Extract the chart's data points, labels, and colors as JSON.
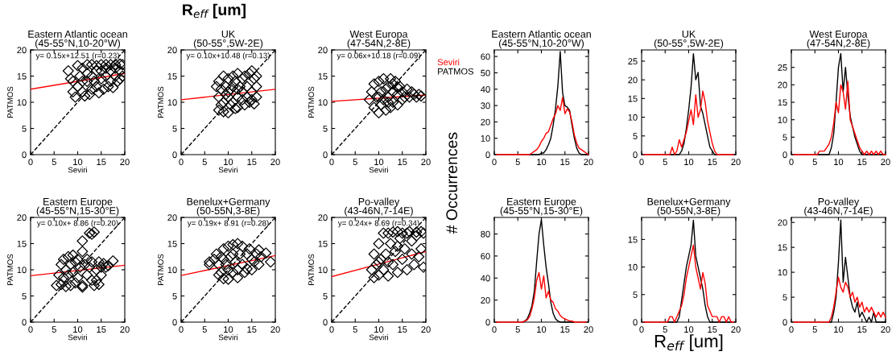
{
  "chart_data": [
    {
      "type": "scatter",
      "title": "Eastern Atlantic ocean\n(45-55°N,10-20°W)",
      "xlabel": "Seviri",
      "ylabel": "PATMOS",
      "xlim": [
        0,
        20
      ],
      "ylim": [
        0,
        20
      ],
      "xticks": [
        0,
        5,
        10,
        15,
        20
      ],
      "yticks": [
        0,
        5,
        10,
        15,
        20
      ],
      "annotations": [
        "y= 0.15x+12.51 (r=0.23)"
      ],
      "series": [
        {
          "type": "scatter",
          "color": "#000000",
          "marker": "diamond",
          "x": [
            8,
            8.5,
            9,
            9.5,
            10,
            10,
            11,
            11,
            11.5,
            12,
            12,
            12.5,
            13,
            13,
            13,
            14,
            14,
            14.5,
            15,
            15,
            15.5,
            16,
            16,
            16.5,
            17,
            17,
            17.5,
            18,
            18,
            18.5,
            19,
            19,
            19.5,
            19.5,
            10.5,
            12,
            13.5,
            15,
            16,
            17,
            18,
            9,
            11,
            14,
            19
          ],
          "values": [
            16,
            14.5,
            12,
            11,
            17,
            13,
            16.5,
            12,
            11.2,
            17.2,
            14,
            11.5,
            17.2,
            15,
            12.5,
            16,
            13,
            11.8,
            17.2,
            14.5,
            12.5,
            17.2,
            15,
            13,
            17.2,
            14,
            12.8,
            16.5,
            15,
            14,
            17.3,
            16,
            15,
            17.2,
            15,
            15.5,
            14,
            16,
            16.5,
            16,
            17.2,
            14,
            14,
            17,
            14.5
          ]
        },
        {
          "type": "line",
          "color": "#ff0000",
          "line_style": "solid",
          "x": [
            0,
            20
          ],
          "values": [
            12.51,
            15.51
          ]
        },
        {
          "type": "line",
          "color": "#000000",
          "line_style": "dashed",
          "x": [
            0,
            20
          ],
          "values": [
            0,
            20
          ]
        }
      ]
    },
    {
      "type": "scatter",
      "title": "UK\n(50-55°,5W-2E)",
      "xlabel": "Seviri",
      "ylabel": "PATMOS",
      "xlim": [
        0,
        20
      ],
      "ylim": [
        0,
        20
      ],
      "xticks": [
        0,
        5,
        10,
        15,
        20
      ],
      "yticks": [
        0,
        5,
        10,
        15,
        20
      ],
      "annotations": [
        "y= 0.10x+10.48 (r=0.13)",
        "R$_{eff}$ [um]"
      ],
      "series": [
        {
          "type": "scatter",
          "color": "#000000",
          "marker": "diamond",
          "x": [
            7.5,
            8,
            8,
            8,
            8.5,
            8.5,
            9,
            9,
            9,
            9.5,
            10,
            10,
            10,
            10.5,
            10.5,
            11,
            11,
            11,
            11.5,
            11.5,
            12,
            12,
            12,
            12.5,
            13,
            13,
            13,
            13.5,
            13.5,
            14,
            14,
            14.5,
            14.5,
            15,
            15,
            15,
            15.5,
            16,
            16,
            16,
            15.5,
            9.5,
            12,
            10
          ],
          "values": [
            13,
            14,
            11,
            8.5,
            12.5,
            9.5,
            15,
            10,
            8.2,
            13,
            14.5,
            11,
            8,
            12.5,
            9.5,
            15,
            10,
            13,
            8.8,
            14,
            15.5,
            11,
            9,
            13,
            14.5,
            10.5,
            12,
            15,
            9.5,
            13,
            11,
            15.5,
            10,
            16,
            12,
            10.5,
            14.5,
            15,
            13,
            11,
            9.7,
            11.5,
            12.5,
            12
          ]
        },
        {
          "type": "line",
          "color": "#ff0000",
          "line_style": "solid",
          "x": [
            0,
            20
          ],
          "values": [
            10.48,
            12.48
          ]
        },
        {
          "type": "line",
          "color": "#000000",
          "line_style": "dashed",
          "x": [
            0,
            20
          ],
          "values": [
            0,
            20
          ]
        }
      ]
    },
    {
      "type": "scatter",
      "title": "West Europa\n(47-54N,2-8E)",
      "xlabel": "Seviri",
      "ylabel": "PATMOS",
      "xlim": [
        0,
        20
      ],
      "ylim": [
        0,
        20
      ],
      "xticks": [
        0,
        5,
        10,
        15,
        20
      ],
      "yticks": [
        0,
        5,
        10,
        15,
        20
      ],
      "annotations": [
        "y= 0.06x+10.18 (r=0.09)"
      ],
      "series": [
        {
          "type": "scatter",
          "color": "#000000",
          "marker": "diamond",
          "x": [
            8,
            8.5,
            9,
            9,
            9.5,
            10,
            10,
            10.5,
            10.5,
            11,
            11,
            11.5,
            12,
            12,
            12.5,
            12.5,
            13,
            13,
            13.5,
            14,
            14,
            14.5,
            15,
            15,
            15.5,
            16,
            16.5,
            17,
            17.5,
            18,
            18.5,
            19,
            11.5,
            13,
            10,
            12,
            14
          ],
          "values": [
            10.5,
            12,
            9,
            13.5,
            11,
            8,
            14,
            12,
            9.5,
            14.5,
            10.5,
            8.5,
            13,
            11,
            14.5,
            9,
            12,
            10,
            14,
            11.5,
            9.5,
            13,
            12,
            10.5,
            11,
            12.5,
            11,
            12,
            11.5,
            11,
            11.5,
            11.2,
            12.5,
            13.5,
            11,
            10,
            12.8
          ]
        },
        {
          "type": "line",
          "color": "#ff0000",
          "line_style": "solid",
          "x": [
            0,
            20
          ],
          "values": [
            10.18,
            11.38
          ]
        },
        {
          "type": "line",
          "color": "#000000",
          "line_style": "dashed",
          "x": [
            0,
            20
          ],
          "values": [
            0,
            20
          ]
        }
      ]
    },
    {
      "type": "line",
      "title": "Eastern Atlantic ocean\n(45-55°N,10-20°W)",
      "ylabel": "# Occurrences",
      "xlim": [
        0,
        20
      ],
      "ylim": [
        0,
        64
      ],
      "xticks": [
        0,
        5,
        10,
        15,
        20
      ],
      "yticks": [
        0,
        10,
        20,
        30,
        40,
        50,
        60
      ],
      "legend": "top left",
      "x": [
        0.5,
        1,
        1.5,
        2,
        2.5,
        3,
        3.5,
        4,
        4.5,
        5,
        5.5,
        6,
        6.5,
        7,
        7.5,
        8,
        8.5,
        9,
        9.5,
        10,
        10.5,
        11,
        11.5,
        12,
        12.5,
        13,
        13.5,
        14,
        14.5,
        15,
        15.5,
        16,
        16.5,
        17,
        17.5,
        18,
        18.5,
        19,
        19.5,
        20
      ],
      "series": [
        {
          "name": "Seviri",
          "color": "#ff0000",
          "values": [
            0,
            0,
            0,
            0,
            0,
            0,
            0,
            0,
            0,
            0,
            0,
            0,
            0,
            0,
            0,
            1,
            2,
            3,
            5,
            8,
            10,
            13,
            14,
            18,
            22,
            25,
            30,
            27,
            35,
            25,
            28,
            26,
            20,
            12,
            7,
            4,
            3,
            2,
            1,
            0
          ]
        },
        {
          "name": "PATMOS",
          "color": "#000000",
          "values": [
            null,
            null,
            null,
            null,
            null,
            null,
            null,
            null,
            null,
            null,
            null,
            null,
            null,
            null,
            0,
            0,
            0,
            0,
            0,
            1,
            1,
            3,
            6,
            10,
            18,
            28,
            42,
            63,
            38,
            30,
            29,
            27,
            18,
            10,
            4,
            1,
            0,
            0,
            0,
            0
          ]
        }
      ]
    },
    {
      "type": "line",
      "title": "UK\n(50-55°,5W-2E)",
      "xlim": [
        0,
        20
      ],
      "ylim": [
        0,
        28
      ],
      "xticks": [
        0,
        5,
        10,
        15,
        20
      ],
      "yticks": [
        0,
        5,
        10,
        15,
        20,
        25
      ],
      "x": [
        0.5,
        1,
        1.5,
        2,
        2.5,
        3,
        3.5,
        4,
        4.5,
        5,
        5.5,
        6,
        6.5,
        7,
        7.5,
        8,
        8.5,
        9,
        9.5,
        10,
        10.5,
        11,
        11.5,
        12,
        12.5,
        13,
        13.5,
        14,
        14.5,
        15,
        15.5,
        16,
        16.5,
        17,
        17.5,
        18,
        18.5,
        19,
        19.5
      ],
      "series": [
        {
          "color": "#ff0000",
          "values": [
            0,
            0,
            0,
            0,
            0,
            0,
            0,
            0,
            0,
            0,
            0,
            0,
            2,
            0,
            1,
            4,
            2,
            4,
            6,
            9,
            12,
            8,
            16,
            10,
            12,
            17,
            14,
            9,
            6,
            3,
            1,
            0,
            0,
            0,
            0,
            0,
            0,
            0,
            0
          ]
        },
        {
          "color": "#000000",
          "values": [
            null,
            null,
            null,
            null,
            null,
            null,
            null,
            null,
            null,
            null,
            null,
            0,
            0,
            0,
            0,
            0,
            1,
            3,
            7,
            12,
            18,
            27,
            20,
            22,
            13,
            11,
            8,
            5,
            2,
            1,
            0,
            0,
            null,
            null,
            null,
            null,
            null,
            null,
            null
          ]
        }
      ]
    },
    {
      "type": "line",
      "title": "West Europa\n(47-54N,2-8E)",
      "xlim": [
        0,
        20
      ],
      "ylim": [
        0,
        30
      ],
      "xticks": [
        0,
        5,
        10,
        15,
        20
      ],
      "yticks": [
        0,
        5,
        10,
        15,
        20,
        25
      ],
      "x": [
        0.5,
        1,
        1.5,
        2,
        2.5,
        3,
        3.5,
        4,
        4.5,
        5,
        5.5,
        6,
        6.5,
        7,
        7.5,
        8,
        8.5,
        9,
        9.5,
        10,
        10.5,
        11,
        11.5,
        12,
        12.5,
        13,
        13.5,
        14,
        14.5,
        15,
        15.5,
        16,
        16.5,
        17,
        17.5,
        18,
        18.5,
        19,
        19.5,
        20
      ],
      "series": [
        {
          "color": "#ff0000",
          "values": [
            0,
            0,
            0,
            0,
            0,
            0,
            0,
            0,
            0,
            0,
            0,
            1,
            1,
            1,
            2,
            3,
            5,
            9,
            15,
            12,
            20,
            18,
            13,
            21,
            10,
            8,
            6,
            4,
            2,
            1,
            0,
            1,
            0,
            1,
            0,
            1,
            0,
            1,
            0,
            0
          ]
        },
        {
          "color": "#000000",
          "values": [
            null,
            null,
            null,
            null,
            null,
            null,
            null,
            null,
            null,
            null,
            0,
            0,
            0,
            0,
            0,
            0,
            2,
            6,
            15,
            25,
            29,
            18,
            25,
            17,
            11,
            8,
            5,
            3,
            1,
            0,
            0,
            0,
            0,
            0,
            0,
            0,
            0,
            0,
            0,
            null
          ]
        }
      ]
    },
    {
      "type": "scatter",
      "title": "Eastern Europe\n(45-55°N,15-30°E)",
      "xlabel": "Seviri",
      "ylabel": "PATMOS",
      "xlim": [
        0,
        20
      ],
      "ylim": [
        0,
        20
      ],
      "xticks": [
        0,
        5,
        10,
        15,
        20
      ],
      "yticks": [
        0,
        5,
        10,
        15,
        20
      ],
      "annotations": [
        "y= 0.10x+ 8.86 (r=0.20)"
      ],
      "series": [
        {
          "type": "scatter",
          "color": "#000000",
          "marker": "diamond",
          "x": [
            5.5,
            6,
            6.5,
            6.5,
            7,
            7,
            7.5,
            7.5,
            8,
            8,
            8.5,
            8.5,
            9,
            9,
            9.5,
            9.5,
            10,
            10,
            10.5,
            11,
            11,
            11,
            11.5,
            12,
            12,
            12.5,
            13,
            13,
            13.5,
            14,
            14,
            14.5,
            14.5,
            15,
            15,
            15.5,
            16,
            16.5,
            17.5,
            11,
            12.5,
            13,
            13.5
          ],
          "values": [
            7,
            9,
            11,
            7.2,
            12,
            8.5,
            10,
            6.8,
            12.5,
            9,
            11,
            7,
            12.8,
            9.5,
            11.5,
            7.5,
            12,
            8.5,
            10.5,
            13.5,
            7,
            6.7,
            11,
            12,
            9,
            10.5,
            11.5,
            8,
            7,
            10,
            8,
            11.5,
            7.2,
            10.5,
            9,
            11.2,
            10.5,
            10.8,
            11.7,
            15.5,
            17,
            16.8,
            17.2
          ]
        },
        {
          "type": "line",
          "color": "#ff0000",
          "line_style": "solid",
          "x": [
            0,
            20
          ],
          "values": [
            8.86,
            10.86
          ]
        },
        {
          "type": "line",
          "color": "#000000",
          "line_style": "dashed",
          "x": [
            0,
            20
          ],
          "values": [
            0,
            20
          ]
        }
      ]
    },
    {
      "type": "scatter",
      "title": "Benelux+Germany\n(50-55N,3-8E)",
      "xlabel": "Seviri",
      "ylabel": "PATMOS",
      "xlim": [
        0,
        20
      ],
      "ylim": [
        0,
        20
      ],
      "xticks": [
        0,
        5,
        10,
        15,
        20
      ],
      "yticks": [
        0,
        5,
        10,
        15,
        20
      ],
      "annotations": [
        "y= 0.19x+ 8.91 (r=0.28)"
      ],
      "series": [
        {
          "type": "scatter",
          "color": "#000000",
          "marker": "diamond",
          "x": [
            6,
            6,
            7,
            7.5,
            8,
            8,
            8.5,
            8.5,
            9,
            9,
            9.5,
            10,
            10,
            10,
            10.5,
            11,
            11,
            11.5,
            12,
            12,
            12,
            12.5,
            13,
            13,
            13.5,
            14,
            14,
            14.5,
            15,
            15,
            15.5,
            16,
            16.5,
            16.5,
            17,
            18,
            19,
            9,
            11
          ],
          "values": [
            11,
            11.5,
            12,
            13,
            11,
            9,
            12.5,
            9.5,
            14,
            8.3,
            11,
            14.5,
            10,
            8.2,
            12.5,
            14.8,
            9.5,
            11.5,
            15,
            10,
            8.5,
            13,
            14.5,
            11,
            9.5,
            13,
            10.2,
            14,
            12,
            10,
            11.5,
            13,
            13.8,
            11,
            12.5,
            13.2,
            11.5,
            12,
            13
          ]
        },
        {
          "type": "line",
          "color": "#ff0000",
          "line_style": "solid",
          "x": [
            0,
            20
          ],
          "values": [
            8.91,
            12.71
          ]
        },
        {
          "type": "line",
          "color": "#000000",
          "line_style": "dashed",
          "x": [
            0,
            20
          ],
          "values": [
            0,
            20
          ]
        }
      ]
    },
    {
      "type": "scatter",
      "title": "Po-valley\n(43-46N,7-14E)",
      "xlabel": "Seviri",
      "ylabel": "PATMOS",
      "xlim": [
        0,
        20
      ],
      "ylim": [
        0,
        20
      ],
      "xticks": [
        0,
        5,
        10,
        15,
        20
      ],
      "yticks": [
        0,
        5,
        10,
        15,
        20
      ],
      "annotations": [
        "y= 0.24x+ 8.69 (r=0.34)"
      ],
      "series": [
        {
          "type": "scatter",
          "color": "#000000",
          "marker": "diamond",
          "x": [
            8.5,
            9,
            9,
            9.5,
            10,
            10,
            10.5,
            11,
            11,
            11.5,
            12,
            12,
            12.5,
            13,
            13,
            13.5,
            14,
            14,
            14.5,
            15,
            15,
            15.5,
            16,
            16,
            16.5,
            17,
            17,
            17.5,
            18,
            18,
            18.5,
            19,
            19,
            19.5,
            19.5,
            10,
            12,
            14
          ],
          "values": [
            10,
            13,
            8.5,
            11,
            15,
            9,
            12,
            17,
            10,
            13,
            17,
            8.8,
            15,
            11,
            17.2,
            13.5,
            17.3,
            9.5,
            16,
            12,
            17,
            14,
            10,
            17,
            17.3,
            13,
            15.5,
            11,
            17.2,
            16.5,
            12.5,
            17.3,
            14,
            10.5,
            17,
            11.5,
            11.5,
            14.5
          ]
        },
        {
          "type": "line",
          "color": "#ff0000",
          "line_style": "solid",
          "x": [
            0,
            20
          ],
          "values": [
            8.69,
            13.49
          ]
        },
        {
          "type": "line",
          "color": "#000000",
          "line_style": "dashed",
          "x": [
            0,
            20
          ],
          "values": [
            0,
            20
          ]
        }
      ]
    },
    {
      "type": "line",
      "title": "Eastern Europe\n(45-55°N,15-30°E)",
      "xlim": [
        0,
        20
      ],
      "ylim": [
        0,
        95
      ],
      "xticks": [
        0,
        5,
        10,
        15,
        20
      ],
      "yticks": [
        0,
        20,
        40,
        60,
        80
      ],
      "x": [
        0.5,
        1,
        1.5,
        2,
        2.5,
        3,
        3.5,
        4,
        4.5,
        5,
        5.5,
        6,
        6.5,
        7,
        7.5,
        8,
        8.5,
        9,
        9.5,
        10,
        10.5,
        11,
        11.5,
        12,
        12.5,
        13,
        13.5,
        14,
        14.5,
        15,
        15.5,
        16,
        16.5,
        17,
        17.5,
        18,
        18.5,
        19,
        19.5
      ],
      "series": [
        {
          "color": "#ff0000",
          "values": [
            0,
            0,
            0,
            0,
            0,
            0,
            0,
            0,
            0,
            0,
            0,
            0,
            1,
            2,
            5,
            12,
            22,
            38,
            45,
            30,
            42,
            22,
            28,
            20,
            18,
            12,
            10,
            6,
            4,
            3,
            2,
            1,
            1,
            0,
            0,
            0,
            0,
            0,
            0
          ]
        },
        {
          "color": "#000000",
          "values": [
            null,
            null,
            null,
            null,
            null,
            null,
            null,
            null,
            null,
            null,
            null,
            0,
            1,
            3,
            8,
            15,
            28,
            55,
            80,
            93,
            70,
            50,
            35,
            18,
            8,
            3,
            1,
            0,
            0,
            0,
            0,
            0,
            0,
            0,
            null,
            null,
            null,
            null,
            null
          ]
        }
      ]
    },
    {
      "type": "line",
      "title": "Benelux+Germany\n(50-55N,3-8E)",
      "xlabel": "R$_{eff}$ [um]",
      "xlim": [
        0,
        20
      ],
      "ylim": [
        0,
        19
      ],
      "xticks": [
        0,
        5,
        10,
        15,
        20
      ],
      "yticks": [
        0,
        5,
        10,
        15
      ],
      "x": [
        0.5,
        1,
        1.5,
        2,
        2.5,
        3,
        3.5,
        4,
        4.5,
        5,
        5.5,
        6,
        6.5,
        7,
        7.5,
        8,
        8.5,
        9,
        9.5,
        10,
        10.5,
        11,
        11.5,
        12,
        12.5,
        13,
        13.5,
        14,
        14.5,
        15,
        15.5,
        16,
        16.5,
        17,
        17.5,
        18,
        18.5,
        19,
        19.5
      ],
      "series": [
        {
          "color": "#ff0000",
          "values": [
            0,
            0,
            0,
            0,
            0,
            0,
            0,
            0,
            0,
            0,
            0,
            1,
            1,
            0,
            1,
            2,
            3,
            5,
            8,
            10,
            12,
            14,
            10,
            8,
            6,
            9,
            7,
            3,
            2,
            1,
            1,
            1,
            0,
            1,
            1,
            0,
            1,
            0,
            0
          ]
        },
        {
          "color": "#000000",
          "values": [
            null,
            null,
            null,
            null,
            null,
            null,
            null,
            null,
            null,
            null,
            0,
            0,
            0,
            0,
            0,
            1,
            4,
            7,
            10,
            12,
            14,
            18.5,
            12,
            10,
            8,
            6,
            3,
            1,
            0,
            0,
            0,
            0,
            0,
            0,
            0,
            0,
            0,
            0,
            null
          ]
        }
      ]
    },
    {
      "type": "line",
      "title": "Po-valley\n(43-46N,7-14E)",
      "xlim": [
        0,
        20
      ],
      "ylim": [
        0,
        21
      ],
      "xticks": [
        0,
        5,
        10,
        15,
        20
      ],
      "yticks": [
        0,
        5,
        10,
        15,
        20
      ],
      "x": [
        0.5,
        1,
        1.5,
        2,
        2.5,
        3,
        3.5,
        4,
        4.5,
        5,
        5.5,
        6,
        6.5,
        7,
        7.5,
        8,
        8.5,
        9,
        9.5,
        10,
        10.5,
        11,
        11.5,
        12,
        12.5,
        13,
        13.5,
        14,
        14.5,
        15,
        15.5,
        16,
        16.5,
        17,
        17.5,
        18,
        18.5,
        19,
        19.5,
        20
      ],
      "series": [
        {
          "color": "#ff0000",
          "values": [
            0,
            0,
            0,
            0,
            0,
            0,
            0,
            0,
            0,
            0,
            0,
            0,
            0,
            0,
            0,
            0,
            1,
            3,
            6,
            9,
            7,
            6,
            8,
            7,
            5,
            6,
            4,
            5,
            3,
            4,
            2,
            3,
            2,
            3,
            2,
            1,
            2,
            1,
            2,
            1
          ]
        },
        {
          "color": "#000000",
          "values": [
            null,
            null,
            null,
            null,
            null,
            null,
            null,
            null,
            null,
            null,
            null,
            null,
            null,
            null,
            null,
            0,
            0,
            2,
            5,
            12,
            20.5,
            8,
            13,
            9,
            5,
            3,
            2,
            4,
            1,
            2,
            1,
            0,
            1,
            0,
            2,
            0,
            0,
            0,
            0,
            0
          ]
        }
      ]
    }
  ]
}
